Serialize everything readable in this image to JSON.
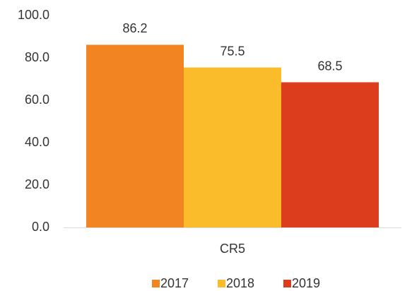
{
  "chart_data": {
    "type": "bar",
    "categories": [
      "CR5"
    ],
    "series": [
      {
        "name": "2017",
        "color": "#f28522",
        "values": [
          86.2
        ]
      },
      {
        "name": "2018",
        "color": "#fbbc2c",
        "values": [
          75.5
        ]
      },
      {
        "name": "2019",
        "color": "#dc3d1c",
        "values": [
          68.5
        ]
      }
    ],
    "ylim": [
      0,
      100
    ],
    "yticks": [
      {
        "value": 0,
        "label": "0.0"
      },
      {
        "value": 20,
        "label": "20.0"
      },
      {
        "value": 40,
        "label": "40.0"
      },
      {
        "value": 60,
        "label": "60.0"
      },
      {
        "value": 80,
        "label": "80.0"
      },
      {
        "value": 100,
        "label": "100.0"
      }
    ],
    "grid": false,
    "legend": "bottom"
  }
}
